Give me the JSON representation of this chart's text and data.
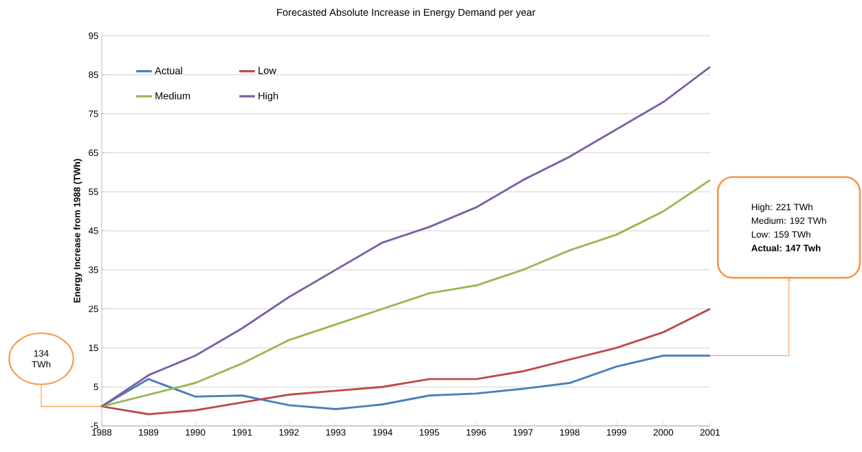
{
  "chart_data": {
    "type": "line",
    "title": "Forecasted Absolute Increase in Energy Demand per year",
    "ylabel": "Energy Increase from 1988 (TWh)",
    "x": [
      1988,
      1989,
      1990,
      1991,
      1992,
      1993,
      1994,
      1995,
      1996,
      1997,
      1998,
      1999,
      2000,
      2001
    ],
    "series": [
      {
        "name": "Actual",
        "color": "#4a7ebb",
        "values": [
          0,
          7,
          2.5,
          2.8,
          0.3,
          -0.7,
          0.5,
          2.8,
          3.3,
          4.5,
          6,
          10.2,
          13,
          13
        ]
      },
      {
        "name": "Low",
        "color": "#be4b48",
        "values": [
          0,
          -2,
          -1,
          1,
          3,
          4,
          5,
          7,
          7,
          9,
          12,
          15,
          19,
          25
        ]
      },
      {
        "name": "Medium",
        "color": "#98b954",
        "values": [
          0,
          3,
          6,
          11,
          17,
          21,
          25,
          29,
          31,
          35,
          40,
          44,
          50,
          58
        ]
      },
      {
        "name": "High",
        "color": "#7d60a0",
        "values": [
          0,
          8,
          13,
          20,
          28,
          35,
          42,
          46,
          51,
          58,
          64,
          71,
          78,
          87
        ]
      }
    ],
    "xlim": [
      1988,
      2001
    ],
    "xticks": [
      1988,
      1989,
      1990,
      1991,
      1992,
      1993,
      1994,
      1995,
      1996,
      1997,
      1998,
      1999,
      2000,
      2001
    ],
    "ylim": [
      -5,
      95
    ],
    "yticks": [
      -5,
      5,
      15,
      25,
      35,
      45,
      55,
      65,
      75,
      85,
      95
    ],
    "grid": "y",
    "legend": "top left",
    "marker": "none",
    "line_style": "solid",
    "annotations": [
      "134 TWh",
      "High: 221 TWh",
      "Medium: 192 TWh",
      "Low: 159 TWh",
      "**Actual: 147 Twh**"
    ]
  }
}
